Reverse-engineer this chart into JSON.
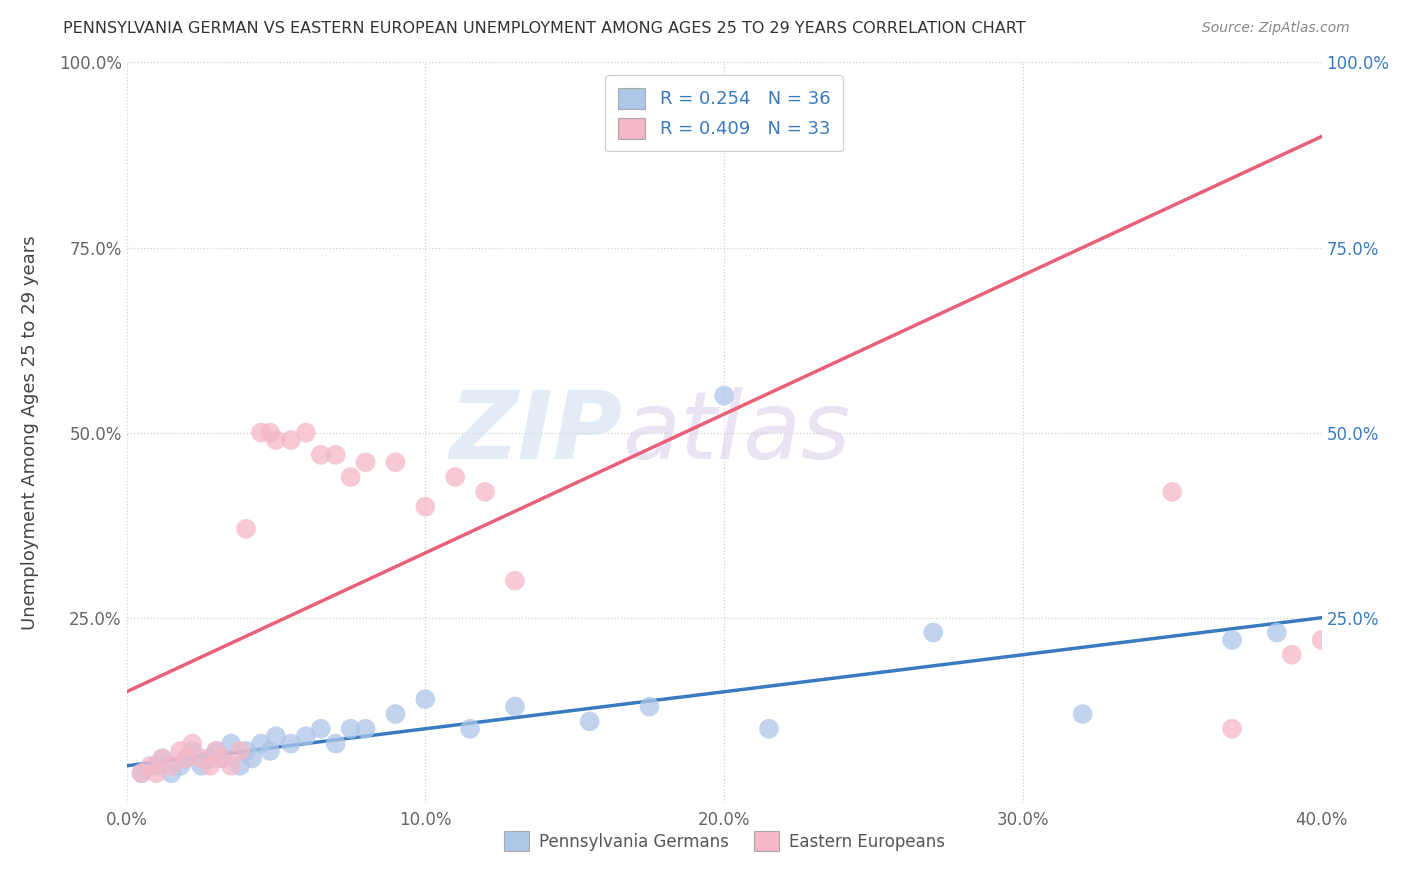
{
  "title": "PENNSYLVANIA GERMAN VS EASTERN EUROPEAN UNEMPLOYMENT AMONG AGES 25 TO 29 YEARS CORRELATION CHART",
  "source": "Source: ZipAtlas.com",
  "ylabel": "Unemployment Among Ages 25 to 29 years",
  "xlim": [
    0.0,
    0.4
  ],
  "ylim": [
    0.0,
    1.0
  ],
  "xticks": [
    0.0,
    0.1,
    0.2,
    0.3,
    0.4
  ],
  "yticks": [
    0.0,
    0.25,
    0.5,
    0.75,
    1.0
  ],
  "xtick_labels": [
    "0.0%",
    "10.0%",
    "20.0%",
    "30.0%",
    "40.0%"
  ],
  "ytick_labels_left": [
    "",
    "25.0%",
    "50.0%",
    "75.0%",
    "100.0%"
  ],
  "ytick_labels_right": [
    "",
    "25.0%",
    "50.0%",
    "75.0%",
    "100.0%"
  ],
  "blue_color": "#aec6e8",
  "pink_color": "#f4b8c8",
  "blue_line_color": "#3a7bbf",
  "pink_line_color": "#e8607a",
  "watermark_zip": "ZIP",
  "watermark_atlas": "atlas",
  "legend_label_blue": "R = 0.254   N = 36",
  "legend_label_pink": "R = 0.409   N = 33",
  "legend_series_blue": "Pennsylvania Germans",
  "legend_series_pink": "Eastern Europeans",
  "blue_x": [
    0.005,
    0.01,
    0.012,
    0.015,
    0.018,
    0.02,
    0.022,
    0.025,
    0.028,
    0.03,
    0.032,
    0.035,
    0.038,
    0.04,
    0.042,
    0.045,
    0.048,
    0.05,
    0.055,
    0.06,
    0.065,
    0.07,
    0.075,
    0.08,
    0.09,
    0.1,
    0.115,
    0.13,
    0.155,
    0.175,
    0.2,
    0.215,
    0.27,
    0.32,
    0.37,
    0.385
  ],
  "blue_y": [
    0.04,
    0.05,
    0.06,
    0.04,
    0.05,
    0.06,
    0.07,
    0.05,
    0.06,
    0.07,
    0.06,
    0.08,
    0.05,
    0.07,
    0.06,
    0.08,
    0.07,
    0.09,
    0.08,
    0.09,
    0.1,
    0.08,
    0.1,
    0.1,
    0.12,
    0.14,
    0.1,
    0.13,
    0.11,
    0.13,
    0.55,
    0.1,
    0.23,
    0.12,
    0.22,
    0.23
  ],
  "pink_x": [
    0.005,
    0.008,
    0.01,
    0.012,
    0.015,
    0.018,
    0.02,
    0.022,
    0.025,
    0.028,
    0.03,
    0.032,
    0.035,
    0.038,
    0.04,
    0.045,
    0.048,
    0.05,
    0.055,
    0.06,
    0.065,
    0.07,
    0.075,
    0.08,
    0.09,
    0.1,
    0.11,
    0.12,
    0.13,
    0.35,
    0.37,
    0.39,
    0.4
  ],
  "pink_y": [
    0.04,
    0.05,
    0.04,
    0.06,
    0.05,
    0.07,
    0.06,
    0.08,
    0.06,
    0.05,
    0.07,
    0.06,
    0.05,
    0.07,
    0.37,
    0.5,
    0.5,
    0.49,
    0.49,
    0.5,
    0.47,
    0.47,
    0.44,
    0.46,
    0.46,
    0.4,
    0.44,
    0.42,
    0.3,
    0.42,
    0.1,
    0.2,
    0.22
  ],
  "pink_line_x0": 0.0,
  "pink_line_y0": 0.15,
  "pink_line_x1": 0.4,
  "pink_line_y1": 0.9,
  "blue_line_x0": 0.0,
  "blue_line_y0": 0.05,
  "blue_line_x1": 0.4,
  "blue_line_y1": 0.25
}
